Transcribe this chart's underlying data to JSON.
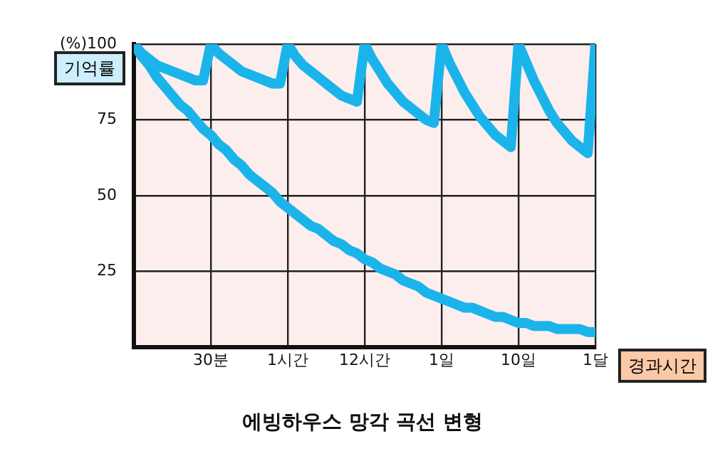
{
  "chart_data": {
    "type": "line",
    "title": "에빙하우스 망각 곡선 변형",
    "xlabel": "경과시간",
    "ylabel": "기억률",
    "categories": [
      null,
      null,
      null,
      null,
      null,
      null,
      null,
      null,
      null,
      null,
      "30분",
      null,
      null,
      null,
      null,
      null,
      null,
      null,
      null,
      null,
      "1시간",
      null,
      null,
      null,
      null,
      null,
      null,
      null,
      null,
      null,
      "12시간",
      null,
      null,
      null,
      null,
      null,
      null,
      null,
      null,
      null,
      "1일",
      null,
      null,
      null,
      null,
      null,
      null,
      null,
      null,
      null,
      "10일",
      null,
      null,
      null,
      null,
      null,
      null,
      null,
      null,
      null,
      "1달"
    ],
    "ylim": [
      0,
      100
    ],
    "yticks": [
      25,
      50,
      75,
      {
        "value": 100,
        "label": "(%)100"
      }
    ],
    "grid": true,
    "legend": false,
    "marker": "none",
    "line_style": "solid",
    "series": [
      {
        "color": "#1ab4ea",
        "values": [
          100,
          97,
          95,
          93,
          92,
          91,
          90,
          89,
          88,
          88,
          100,
          97,
          95,
          93,
          91,
          90,
          89,
          88,
          87,
          87,
          100,
          96,
          93,
          91,
          89,
          87,
          85,
          83,
          82,
          81,
          100,
          95,
          91,
          87,
          84,
          81,
          79,
          77,
          75,
          74,
          100,
          94,
          89,
          84,
          80,
          76,
          73,
          70,
          68,
          66,
          100,
          94,
          88,
          83,
          78,
          74,
          71,
          68,
          66,
          64,
          100
        ]
      },
      {
        "color": "#1ab4ea",
        "values": [
          100,
          96,
          93,
          89,
          86,
          83,
          80,
          78,
          75,
          72,
          70,
          67,
          65,
          62,
          60,
          57,
          55,
          53,
          51,
          48,
          46,
          44,
          42,
          40,
          39,
          37,
          35,
          34,
          32,
          31,
          29,
          28,
          26,
          25,
          24,
          22,
          21,
          20,
          18,
          17,
          16,
          15,
          14,
          13,
          13,
          12,
          11,
          10,
          10,
          9,
          8,
          8,
          7,
          7,
          7,
          6,
          6,
          6,
          6,
          5,
          5
        ]
      }
    ]
  }
}
